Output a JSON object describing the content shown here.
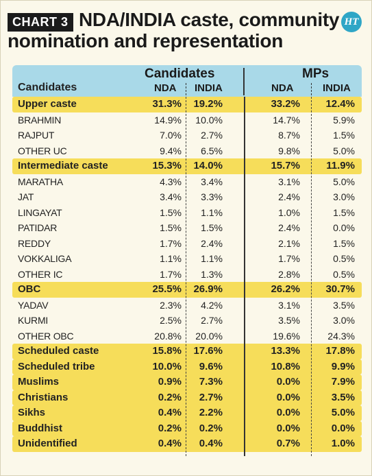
{
  "chart_tag": "CHART 3",
  "title": "NDA/INDIA caste, community nomination and representation",
  "logo": "HT",
  "chart_data": {
    "type": "table",
    "title": "NDA/INDIA caste, community nomination and representation",
    "header": {
      "first_col": "Candidates",
      "groups": [
        "Candidates",
        "MPs"
      ],
      "subcols": [
        "NDA",
        "INDIA",
        "NDA",
        "INDIA"
      ]
    },
    "rows": [
      {
        "label": "Upper caste",
        "highlight": true,
        "values": [
          "31.3%",
          "19.2%",
          "33.2%",
          "12.4%"
        ]
      },
      {
        "label": "BRAHMIN",
        "highlight": false,
        "values": [
          "14.9%",
          "10.0%",
          "14.7%",
          "5.9%"
        ]
      },
      {
        "label": "RAJPUT",
        "highlight": false,
        "values": [
          "7.0%",
          "2.7%",
          "8.7%",
          "1.5%"
        ]
      },
      {
        "label": "OTHER UC",
        "highlight": false,
        "values": [
          "9.4%",
          "6.5%",
          "9.8%",
          "5.0%"
        ]
      },
      {
        "label": "Intermediate caste",
        "highlight": true,
        "values": [
          "15.3%",
          "14.0%",
          "15.7%",
          "11.9%"
        ]
      },
      {
        "label": "MARATHA",
        "highlight": false,
        "values": [
          "4.3%",
          "3.4%",
          "3.1%",
          "5.0%"
        ]
      },
      {
        "label": "JAT",
        "highlight": false,
        "values": [
          "3.4%",
          "3.3%",
          "2.4%",
          "3.0%"
        ]
      },
      {
        "label": "LINGAYAT",
        "highlight": false,
        "values": [
          "1.5%",
          "1.1%",
          "1.0%",
          "1.5%"
        ]
      },
      {
        "label": "PATIDAR",
        "highlight": false,
        "values": [
          "1.5%",
          "1.5%",
          "2.4%",
          "0.0%"
        ]
      },
      {
        "label": "REDDY",
        "highlight": false,
        "values": [
          "1.7%",
          "2.4%",
          "2.1%",
          "1.5%"
        ]
      },
      {
        "label": "VOKKALIGA",
        "highlight": false,
        "values": [
          "1.1%",
          "1.1%",
          "1.7%",
          "0.5%"
        ]
      },
      {
        "label": "OTHER IC",
        "highlight": false,
        "values": [
          "1.7%",
          "1.3%",
          "2.8%",
          "0.5%"
        ]
      },
      {
        "label": "OBC",
        "highlight": true,
        "values": [
          "25.5%",
          "26.9%",
          "26.2%",
          "30.7%"
        ]
      },
      {
        "label": "YADAV",
        "highlight": false,
        "values": [
          "2.3%",
          "4.2%",
          "3.1%",
          "3.5%"
        ]
      },
      {
        "label": "KURMI",
        "highlight": false,
        "values": [
          "2.5%",
          "2.7%",
          "3.5%",
          "3.0%"
        ]
      },
      {
        "label": "OTHER OBC",
        "highlight": false,
        "values": [
          "20.8%",
          "20.0%",
          "19.6%",
          "24.3%"
        ]
      },
      {
        "label": "Scheduled caste",
        "highlight": true,
        "values": [
          "15.8%",
          "17.6%",
          "13.3%",
          "17.8%"
        ]
      },
      {
        "label": "Scheduled tribe",
        "highlight": true,
        "values": [
          "10.0%",
          "9.6%",
          "10.8%",
          "9.9%"
        ]
      },
      {
        "label": "Muslims",
        "highlight": true,
        "values": [
          "0.9%",
          "7.3%",
          "0.0%",
          "7.9%"
        ]
      },
      {
        "label": "Christians",
        "highlight": true,
        "values": [
          "0.2%",
          "2.7%",
          "0.0%",
          "3.5%"
        ]
      },
      {
        "label": "Sikhs",
        "highlight": true,
        "values": [
          "0.4%",
          "2.2%",
          "0.0%",
          "5.0%"
        ]
      },
      {
        "label": "Buddhist",
        "highlight": true,
        "values": [
          "0.2%",
          "0.2%",
          "0.0%",
          "0.0%"
        ]
      },
      {
        "label": "Unidentified",
        "highlight": true,
        "values": [
          "0.4%",
          "0.4%",
          "0.7%",
          "1.0%"
        ]
      }
    ]
  },
  "colors": {
    "highlight": "#f6dd5a",
    "header": "#a9d9e8",
    "tag_bg": "#1b1b1b",
    "logo": "#2fa6c6"
  }
}
